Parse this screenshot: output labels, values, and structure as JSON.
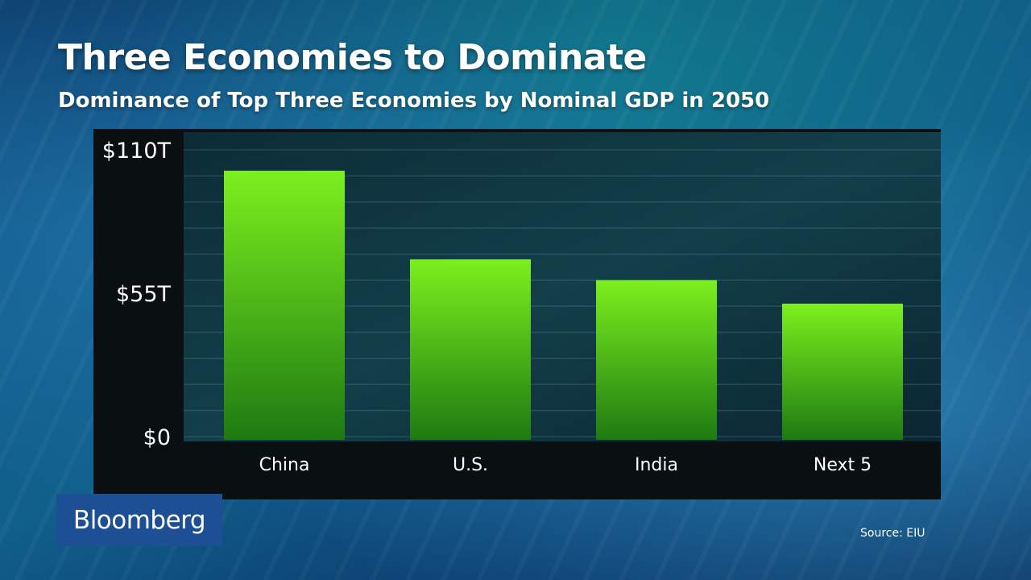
{
  "header": {
    "title": "Three Economies to Dominate",
    "subtitle": "Dominance of Top Three Economies by Nominal GDP in 2050"
  },
  "footer": {
    "brand": "Bloomberg",
    "source": "Source: EIU"
  },
  "colors": {
    "bar_top": "#7cf01e",
    "bar_bottom": "#1e7a12",
    "brand_bg": "#1c4f93",
    "panel_bg": "#0a0f12"
  },
  "chart_data": {
    "type": "bar",
    "title": "Three Economies to Dominate",
    "subtitle": "Dominance of Top Three Economies by Nominal GDP in 2050",
    "xlabel": "",
    "ylabel": "",
    "categories": [
      "China",
      "U.S.",
      "India",
      "Next 5"
    ],
    "values": [
      102,
      68,
      60,
      51
    ],
    "ylim": [
      0,
      110
    ],
    "y_ticks": [
      {
        "value": 0,
        "label": "$0"
      },
      {
        "value": 55,
        "label": "$55T"
      },
      {
        "value": 110,
        "label": "$110T"
      }
    ],
    "grid": true,
    "legend": "none"
  }
}
